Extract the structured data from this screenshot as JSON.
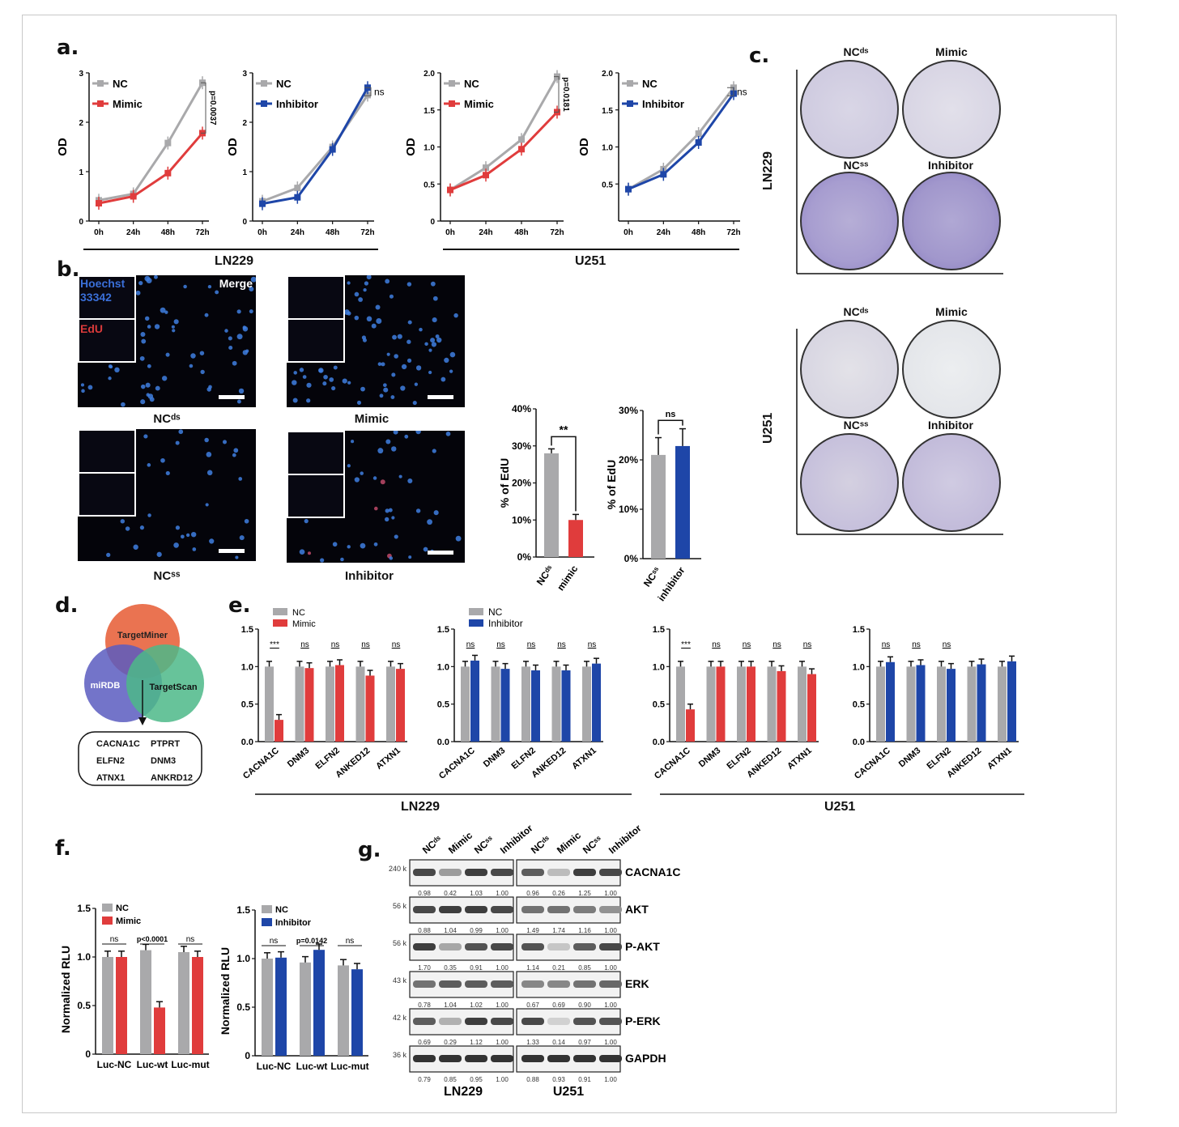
{
  "panels": {
    "a": "a.",
    "b": "b.",
    "c": "c.",
    "d": "d.",
    "e": "e.",
    "f": "f.",
    "g": "g."
  },
  "colors": {
    "nc": "#a9a9ab",
    "mimic": "#e03c3c",
    "inhibitor": "#1e46a8"
  },
  "panel_a": {
    "groups": [
      "LN229",
      "U251"
    ],
    "charts": [
      {
        "type": "line",
        "ylabel": "OD",
        "ylim": [
          0,
          3
        ],
        "yticks": [
          "0",
          "1",
          "2",
          "3"
        ],
        "x": [
          "0h",
          "24h",
          "48h",
          "72h"
        ],
        "series": [
          {
            "name": "NC",
            "values": [
              0.42,
              0.55,
              1.58,
              2.8
            ]
          },
          {
            "name": "Mimic",
            "values": [
              0.36,
              0.5,
              0.97,
              1.78
            ]
          }
        ],
        "annotation": "p=0.0037"
      },
      {
        "type": "line",
        "ylabel": "OD",
        "ylim": [
          0,
          3
        ],
        "yticks": [
          "0",
          "1",
          "2",
          "3"
        ],
        "x": [
          "0h",
          "24h",
          "48h",
          "72h"
        ],
        "series": [
          {
            "name": "NC",
            "values": [
              0.4,
              0.67,
              1.5,
              2.55
            ]
          },
          {
            "name": "Inhibitor",
            "values": [
              0.35,
              0.48,
              1.45,
              2.7
            ]
          }
        ],
        "annotation": "ns"
      },
      {
        "type": "line",
        "ylabel": "OD",
        "ylim": [
          0,
          2.0
        ],
        "yticks": [
          "0",
          "0.5",
          "1.0",
          "1.5",
          "2.0"
        ],
        "x": [
          "0h",
          "24h",
          "48h",
          "72h"
        ],
        "series": [
          {
            "name": "NC",
            "values": [
              0.42,
              0.72,
              1.1,
              1.95
            ]
          },
          {
            "name": "Mimic",
            "values": [
              0.42,
              0.62,
              0.97,
              1.47
            ]
          }
        ],
        "annotation": "p=0.0181"
      },
      {
        "type": "line",
        "ylabel": "OD",
        "ylim": [
          0,
          2.0
        ],
        "yticks": [
          "0.5",
          "1.0",
          "1.5",
          "2.0"
        ],
        "x": [
          "0h",
          "24h",
          "48h",
          "72h"
        ],
        "series": [
          {
            "name": "NC",
            "values": [
              0.43,
              0.7,
              1.18,
              1.8
            ]
          },
          {
            "name": "Inhibitor",
            "values": [
              0.43,
              0.63,
              1.06,
              1.72
            ]
          }
        ],
        "annotation": "ns"
      }
    ]
  },
  "panel_b": {
    "inset_labels": [
      "Hoechst",
      "33342",
      "EdU"
    ],
    "merge": "Merge",
    "captions": [
      "NCᵈˢ",
      "Mimic",
      "NCˢˢ",
      "Inhibitor"
    ],
    "charts": [
      {
        "type": "bar",
        "ylabel": "% of EdU",
        "ylim": [
          0,
          40
        ],
        "yticks": [
          "0%",
          "10%",
          "20%",
          "30%",
          "40%"
        ],
        "categories": [
          "NCᵈˢ",
          "mimic"
        ],
        "values": [
          28,
          10
        ],
        "errors": [
          1.2,
          1.5
        ],
        "annotation": "**"
      },
      {
        "type": "bar",
        "ylabel": "% of EdU",
        "ylim": [
          0,
          30
        ],
        "yticks": [
          "0%",
          "10%",
          "20%",
          "30%"
        ],
        "categories": [
          "NCˢˢ",
          "inhibitor"
        ],
        "values": [
          21,
          22.8
        ],
        "errors": [
          3.5,
          3.5
        ],
        "annotation": "ns"
      }
    ]
  },
  "panel_c": {
    "groups": [
      "LN229",
      "U251"
    ],
    "dish_labels": [
      "NCᵈˢ",
      "Mimic",
      "NCˢˢ",
      "Inhibitor"
    ]
  },
  "panel_d": {
    "circles": [
      "TargetMiner",
      "miRDB",
      "TargetScan"
    ],
    "genes": [
      "CACNA1C",
      "PTPRT",
      "ELFN2",
      "DNM3",
      "ATNX1",
      "ANKRD12"
    ]
  },
  "panel_e": {
    "groups": [
      "LN229",
      "U251"
    ],
    "categories": [
      "CACNA1C",
      "DNM3",
      "ELFN2",
      "ANKED12",
      "ATXN1"
    ],
    "ylim": [
      0,
      1.5
    ],
    "yticks": [
      "0.0",
      "0.5",
      "1.0",
      "1.5"
    ],
    "charts": [
      {
        "type": "bar",
        "series": [
          {
            "name": "NC",
            "values": [
              1.0,
              1.0,
              1.0,
              1.0,
              1.0
            ]
          },
          {
            "name": "Mimic",
            "values": [
              0.29,
              0.98,
              1.02,
              0.88,
              0.97
            ]
          }
        ],
        "sig": [
          "***",
          "ns",
          "ns",
          "ns",
          "ns"
        ]
      },
      {
        "type": "bar",
        "series": [
          {
            "name": "NC",
            "values": [
              1.0,
              1.0,
              1.0,
              1.0,
              1.0
            ]
          },
          {
            "name": "Inhibitor",
            "values": [
              1.08,
              0.97,
              0.95,
              0.95,
              1.04
            ]
          }
        ],
        "sig": [
          "ns",
          "ns",
          "ns",
          "ns",
          "ns"
        ]
      },
      {
        "type": "bar",
        "series": [
          {
            "name": "NC",
            "values": [
              1.0,
              1.0,
              1.0,
              1.0,
              1.0
            ]
          },
          {
            "name": "Mimic",
            "values": [
              0.43,
              1.0,
              1.0,
              0.94,
              0.9
            ]
          }
        ],
        "sig": [
          "***",
          "ns",
          "ns",
          "ns",
          "ns"
        ]
      },
      {
        "type": "bar",
        "series": [
          {
            "name": "NC",
            "values": [
              1.0,
              1.0,
              1.0,
              1.0,
              1.0
            ]
          },
          {
            "name": "Inhibitor",
            "values": [
              1.06,
              1.02,
              0.97,
              1.03,
              1.07
            ]
          }
        ],
        "sig": [
          "ns",
          "ns",
          "ns",
          "",
          ""
        ]
      }
    ]
  },
  "panel_f": {
    "ylabel": "Normalized RLU",
    "ylim": [
      0,
      1.5
    ],
    "yticks": [
      "0",
      "0.5",
      "1.0",
      "1.5"
    ],
    "categories": [
      "Luc-NC",
      "Luc-wt",
      "Luc-mut"
    ],
    "charts": [
      {
        "type": "bar",
        "series": [
          {
            "name": "NC",
            "values": [
              1.0,
              1.07,
              1.05
            ]
          },
          {
            "name": "Mimic",
            "values": [
              1.0,
              0.48,
              1.0
            ]
          }
        ],
        "sig": [
          "ns",
          "p<0.0001",
          "ns"
        ]
      },
      {
        "type": "bar",
        "series": [
          {
            "name": "NC",
            "values": [
              1.0,
              0.96,
              0.93
            ]
          },
          {
            "name": "Inhibitor",
            "values": [
              1.01,
              1.09,
              0.89
            ]
          }
        ],
        "sig": [
          "ns",
          "p=0.0142",
          "ns"
        ]
      }
    ]
  },
  "panel_g": {
    "lanes": [
      "NCᵈˢ",
      "Mimic",
      "NCˢˢ",
      "Inhibitor",
      "NCᵈˢ",
      "Mimic",
      "NCˢˢ",
      "Inhibitor"
    ],
    "groups": [
      "LN229",
      "U251"
    ],
    "rows": [
      {
        "protein": "CACNA1C",
        "size": "240 k",
        "values": [
          "0.98",
          "0.42",
          "1.03",
          "1.00",
          "0.96",
          "0.26",
          "1.25",
          "1.00"
        ],
        "intensity": [
          0.8,
          0.4,
          0.85,
          0.8,
          0.7,
          0.25,
          0.85,
          0.8
        ]
      },
      {
        "protein": "AKT",
        "size": "56 k",
        "values": [
          "0.88",
          "1.04",
          "0.99",
          "1.00",
          "1.49",
          "1.74",
          "1.16",
          "1.00"
        ],
        "intensity": [
          0.8,
          0.85,
          0.85,
          0.8,
          0.6,
          0.6,
          0.55,
          0.45
        ]
      },
      {
        "protein": "P-AKT",
        "size": "56 k",
        "values": [
          "1.70",
          "0.35",
          "0.91",
          "1.00",
          "1.14",
          "0.21",
          "0.85",
          "1.00"
        ],
        "intensity": [
          0.85,
          0.35,
          0.75,
          0.8,
          0.75,
          0.2,
          0.7,
          0.8
        ]
      },
      {
        "protein": "ERK",
        "size": "43 k",
        "values": [
          "0.78",
          "1.04",
          "1.02",
          "1.00",
          "0.67",
          "0.69",
          "0.90",
          "1.00"
        ],
        "intensity": [
          0.6,
          0.7,
          0.7,
          0.7,
          0.5,
          0.5,
          0.6,
          0.65
        ]
      },
      {
        "protein": "P-ERK",
        "size": "42 k",
        "values": [
          "0.69",
          "0.29",
          "1.12",
          "1.00",
          "1.33",
          "0.14",
          "0.97",
          "1.00"
        ],
        "intensity": [
          0.7,
          0.3,
          0.85,
          0.8,
          0.8,
          0.15,
          0.75,
          0.75
        ]
      },
      {
        "protein": "GAPDH",
        "size": "36 k",
        "values": [
          "0.79",
          "0.85",
          "0.95",
          "1.00",
          "0.88",
          "0.93",
          "0.91",
          "1.00"
        ],
        "intensity": [
          0.9,
          0.9,
          0.9,
          0.9,
          0.9,
          0.9,
          0.9,
          0.9
        ]
      }
    ]
  }
}
